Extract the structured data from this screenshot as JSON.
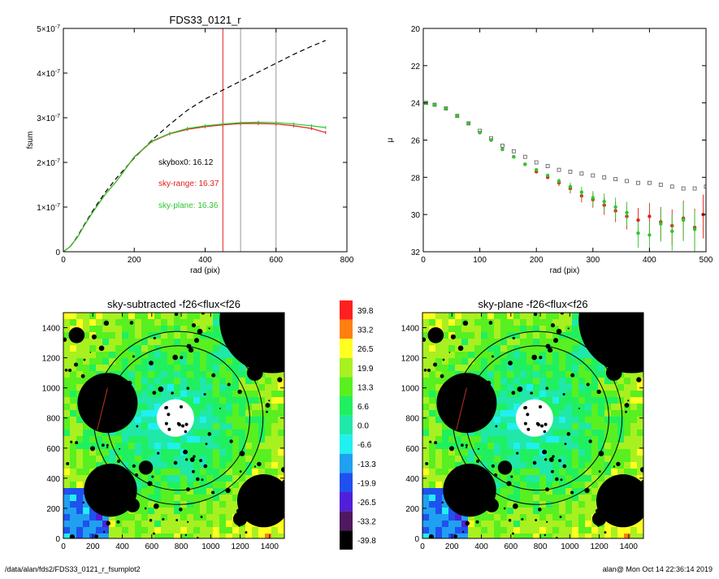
{
  "chart_data": [
    {
      "id": "fsum",
      "type": "line",
      "title": "FDS33_0121_r",
      "xlabel": "rad (pix)",
      "ylabel": "fsum",
      "xlim": [
        0,
        800
      ],
      "ylim": [
        0,
        5e-07
      ],
      "x_ticks": [
        0,
        200,
        400,
        600,
        800
      ],
      "y_ticks": [
        {
          "v": 0,
          "label": "0",
          "sup": ""
        },
        {
          "v": 1e-07,
          "label": "1×10",
          "sup": "-7"
        },
        {
          "v": 2e-07,
          "label": "2×10",
          "sup": "-7"
        },
        {
          "v": 3e-07,
          "label": "3×10",
          "sup": "-7"
        },
        {
          "v": 4e-07,
          "label": "4×10",
          "sup": "-7"
        },
        {
          "v": 5e-07,
          "label": "5×10",
          "sup": "-7"
        }
      ],
      "vlines": [
        {
          "x": 450,
          "color": "#e0201c"
        },
        {
          "x": 500,
          "color": "#999999"
        },
        {
          "x": 600,
          "color": "#999999"
        }
      ],
      "series": [
        {
          "key": "skybox0",
          "color": "#000000",
          "dash": "6,4",
          "x": [
            0,
            20,
            40,
            60,
            80,
            100,
            120,
            150,
            200,
            250,
            300,
            350,
            400,
            450,
            500,
            550,
            600,
            650,
            700,
            740
          ],
          "y": [
            0,
            1.2e-08,
            3.5e-08,
            6.2e-08,
            8.8e-08,
            1.12e-07,
            1.35e-07,
            1.65e-07,
            2.1e-07,
            2.5e-07,
            2.85e-07,
            3.17e-07,
            3.42e-07,
            3.62e-07,
            3.82e-07,
            4.02e-07,
            4.22e-07,
            4.42e-07,
            4.6e-07,
            4.73e-07
          ]
        },
        {
          "key": "sky-range",
          "color": "#e0201c",
          "dash": "",
          "x": [
            0,
            20,
            40,
            60,
            80,
            100,
            120,
            150,
            200,
            250,
            300,
            350,
            400,
            450,
            500,
            550,
            600,
            650,
            700,
            740
          ],
          "y": [
            0,
            1.2e-08,
            3.3e-08,
            6e-08,
            8.5e-08,
            1.08e-07,
            1.3e-07,
            1.58e-07,
            2.12e-07,
            2.47e-07,
            2.64e-07,
            2.74e-07,
            2.8e-07,
            2.84e-07,
            2.87e-07,
            2.87e-07,
            2.86e-07,
            2.82e-07,
            2.76e-07,
            2.67e-07
          ]
        },
        {
          "key": "sky-plane",
          "color": "#2ec72e",
          "dash": "",
          "x": [
            0,
            20,
            40,
            60,
            80,
            100,
            120,
            150,
            200,
            250,
            300,
            350,
            400,
            450,
            500,
            550,
            600,
            650,
            700,
            740
          ],
          "y": [
            0,
            1.2e-08,
            3.3e-08,
            6e-08,
            8.5e-08,
            1.08e-07,
            1.3e-07,
            1.58e-07,
            2.13e-07,
            2.48e-07,
            2.65e-07,
            2.76e-07,
            2.82e-07,
            2.86e-07,
            2.89e-07,
            2.9e-07,
            2.89e-07,
            2.86e-07,
            2.82e-07,
            2.78e-07
          ]
        }
      ],
      "annotations": [
        {
          "text": "skybox0: 16.12",
          "color": "#000000"
        },
        {
          "text": "sky-range: 16.37",
          "color": "#e0201c"
        },
        {
          "text": "sky-plane: 16.36",
          "color": "#2ec72e"
        }
      ]
    },
    {
      "id": "profile",
      "type": "scatter",
      "title": "",
      "xlabel": "rad (pix)",
      "ylabel": "μ",
      "xlim": [
        0,
        500
      ],
      "ylim": [
        32,
        20
      ],
      "x_ticks": [
        0,
        100,
        200,
        300,
        400,
        500
      ],
      "y_ticks": [
        20,
        22,
        24,
        26,
        28,
        30,
        32
      ],
      "series": [
        {
          "key": "skybox0",
          "color": "#555555",
          "x": [
            5,
            20,
            40,
            60,
            80,
            100,
            120,
            140,
            160,
            180,
            200,
            220,
            240,
            260,
            280,
            300,
            320,
            340,
            360,
            380,
            400,
            420,
            440,
            460,
            480,
            500
          ],
          "y": [
            24.0,
            24.1,
            24.3,
            24.7,
            25.1,
            25.5,
            25.9,
            26.3,
            26.6,
            26.9,
            27.2,
            27.4,
            27.6,
            27.7,
            27.8,
            27.9,
            28.0,
            28.1,
            28.2,
            28.3,
            28.3,
            28.4,
            28.5,
            28.6,
            28.6,
            28.5
          ]
        },
        {
          "key": "sky-range",
          "color": "#e0201c",
          "x": [
            5,
            20,
            40,
            60,
            80,
            100,
            120,
            140,
            160,
            180,
            200,
            220,
            240,
            260,
            280,
            300,
            320,
            340,
            360,
            380,
            400,
            420,
            440,
            460,
            480,
            495
          ],
          "y": [
            24.0,
            24.1,
            24.3,
            24.7,
            25.1,
            25.6,
            26.0,
            26.5,
            26.9,
            27.3,
            27.7,
            28.0,
            28.3,
            28.6,
            29.0,
            29.2,
            29.5,
            29.8,
            30.1,
            30.3,
            30.1,
            30.4,
            30.6,
            30.2,
            30.7,
            30.0
          ]
        },
        {
          "key": "sky-plane",
          "color": "#2ec72e",
          "x": [
            5,
            20,
            40,
            60,
            80,
            100,
            120,
            140,
            160,
            180,
            200,
            220,
            240,
            260,
            280,
            300,
            320,
            340,
            360,
            380,
            400,
            420,
            440,
            460,
            480
          ],
          "y": [
            24.0,
            24.1,
            24.3,
            24.7,
            25.1,
            25.6,
            26.0,
            26.5,
            26.9,
            27.3,
            27.6,
            27.9,
            28.2,
            28.5,
            28.8,
            29.1,
            29.3,
            29.6,
            29.9,
            31.0,
            31.1,
            30.5,
            30.9,
            30.3,
            30.8
          ]
        }
      ]
    },
    {
      "id": "img1",
      "type": "heatmap",
      "title": "sky-subtracted -f26<flux<f26",
      "xlim": [
        0,
        1500
      ],
      "ylim": [
        0,
        1500
      ],
      "x_ticks": [
        0,
        200,
        400,
        600,
        800,
        1000,
        1200,
        1400
      ],
      "y_ticks": [
        0,
        200,
        400,
        600,
        800,
        1000,
        1200,
        1400
      ]
    },
    {
      "id": "img2",
      "type": "heatmap",
      "title": "sky-plane -f26<flux<f26",
      "xlim": [
        0,
        1500
      ],
      "ylim": [
        0,
        1500
      ],
      "x_ticks": [
        0,
        200,
        400,
        600,
        800,
        1000,
        1200,
        1400
      ],
      "y_ticks": [
        0,
        200,
        400,
        600,
        800,
        1000,
        1200,
        1400
      ]
    }
  ],
  "colorbar": {
    "levels": [
      {
        "label": "39.8",
        "color": "#ff2020"
      },
      {
        "label": "33.2",
        "color": "#ff8010"
      },
      {
        "label": "26.5",
        "color": "#ffff20"
      },
      {
        "label": "19.9",
        "color": "#a8f020"
      },
      {
        "label": "13.3",
        "color": "#58f020"
      },
      {
        "label": "6.6",
        "color": "#20f060"
      },
      {
        "label": "0.0",
        "color": "#20e8a8"
      },
      {
        "label": "-6.6",
        "color": "#20f0f0"
      },
      {
        "label": "-13.3",
        "color": "#20a0f0"
      },
      {
        "label": "-19.9",
        "color": "#2050f0"
      },
      {
        "label": "-26.5",
        "color": "#5020d8"
      },
      {
        "label": "-33.2",
        "color": "#501860"
      },
      {
        "label": "-39.8",
        "color": "#000000"
      }
    ]
  },
  "footer": {
    "path": "/data/alan/fds2/FDS33_0121_r_fsumplot2",
    "stamp": "alan@  Mon Oct 14 22:36:14 2019"
  }
}
